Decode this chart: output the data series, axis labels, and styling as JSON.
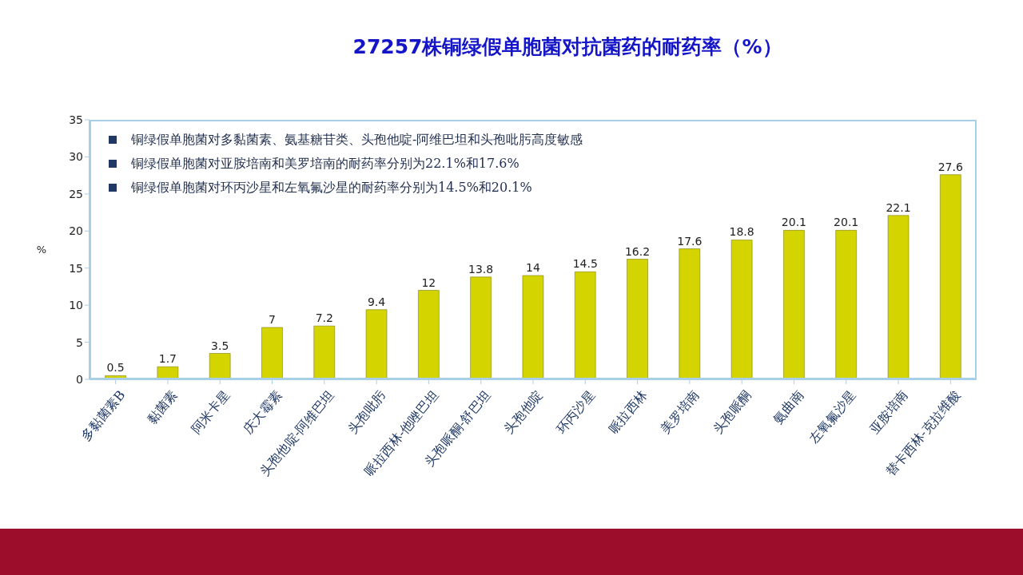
{
  "chart_data": {
    "type": "bar",
    "title": "27257株铜绿假单胞菌对抗菌药的耐药率（%）",
    "ylabel": "%",
    "categories": [
      "多黏菌素B",
      "黏菌素",
      "阿米卡星",
      "庆大霉素",
      "头孢他啶-阿维巴坦",
      "头孢吡肟",
      "哌拉西林-他唑巴坦",
      "头孢哌酮-舒巴坦",
      "头孢他啶",
      "环丙沙星",
      "哌拉西林",
      "美罗培南",
      "头孢哌酮",
      "氨曲南",
      "左氧氟沙星",
      "亚胺培南",
      "替卡西林-克拉维酸"
    ],
    "values": [
      0.5,
      1.7,
      3.5,
      7,
      7.2,
      9.4,
      12,
      13.8,
      14,
      14.5,
      16.2,
      17.6,
      18.8,
      20.1,
      20.1,
      22.1,
      27.6
    ],
    "color": "#d4d400",
    "ylim": [
      0,
      35
    ],
    "yticks": [
      0,
      5,
      10,
      15,
      20,
      25,
      30,
      35
    ],
    "grid": false,
    "legend": false,
    "data_labels": true,
    "annotations": [
      "铜绿假单胞菌对多黏菌素、氨基糖苷类、头孢他啶-阿维巴坦和头孢吡肟高度敏感",
      "铜绿假单胞菌对亚胺培南和美罗培南的耐药率分别为22.1%和17.6%",
      "铜绿假单胞菌对环丙沙星和左氧氟沙星的耐药率分别为14.5%和20.1%"
    ]
  }
}
